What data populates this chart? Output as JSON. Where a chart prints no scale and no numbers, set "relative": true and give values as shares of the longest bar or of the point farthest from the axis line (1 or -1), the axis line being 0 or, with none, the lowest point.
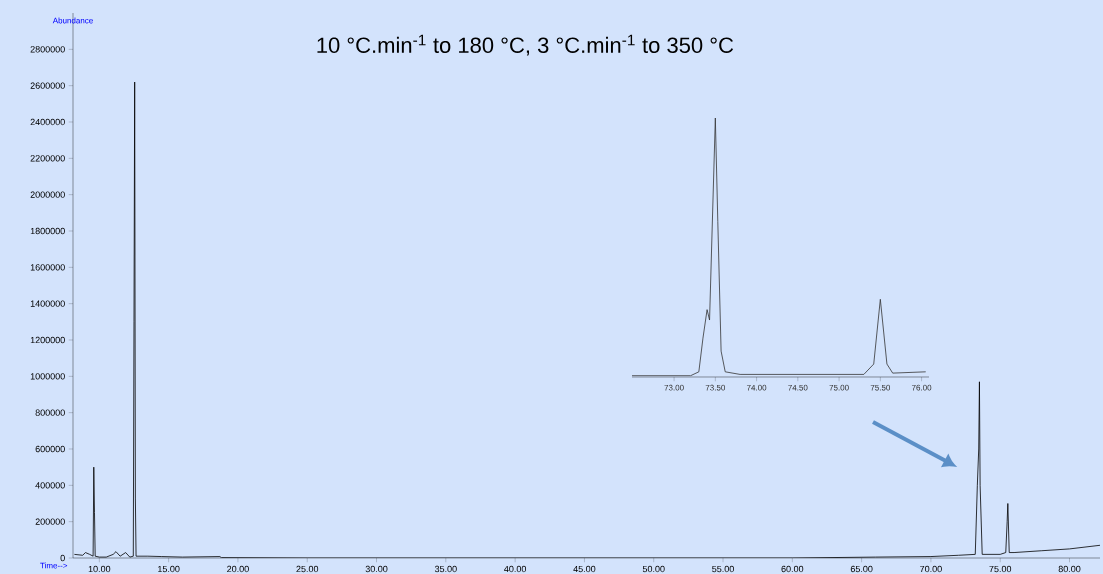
{
  "chart_data": [
    {
      "type": "line",
      "title": "10 °C.min$^{-1}$ to 180 °C, 3 °C.min$^{-1}$ to 350 °C",
      "xlabel": "Time-->",
      "ylabel": "Abundance",
      "xlim": [
        8.1,
        82.2
      ],
      "ylim": [
        0,
        3000000
      ],
      "xticks": [
        {
          "value": 10,
          "label": "10.00"
        },
        {
          "value": 15,
          "label": "15.00"
        },
        {
          "value": 20,
          "label": "20.00"
        },
        {
          "value": 25,
          "label": "25.00"
        },
        {
          "value": 30,
          "label": "30.00"
        },
        {
          "value": 35,
          "label": "35.00"
        },
        {
          "value": 40,
          "label": "40.00"
        },
        {
          "value": 45,
          "label": "45.00"
        },
        {
          "value": 50,
          "label": "50.00"
        },
        {
          "value": 55,
          "label": "55.00"
        },
        {
          "value": 60,
          "label": "60.00"
        },
        {
          "value": 65,
          "label": "65.00"
        },
        {
          "value": 70,
          "label": "70.00"
        },
        {
          "value": 75,
          "label": "75.00"
        },
        {
          "value": 80,
          "label": "80.00"
        }
      ],
      "yticks": [
        0,
        200000,
        400000,
        600000,
        800000,
        1000000,
        1200000,
        1400000,
        1600000,
        1800000,
        2000000,
        2200000,
        2400000,
        2600000,
        2800000
      ],
      "series": [
        {
          "color": "#000000",
          "x": [
            8.2,
            8.8,
            9.0,
            9.3,
            9.55,
            9.6,
            9.65,
            9.7,
            10.0,
            10.5,
            11.0,
            11.2,
            11.5,
            11.9,
            12.2,
            12.45,
            12.5,
            12.55,
            12.6,
            12.65,
            13.5,
            14.5,
            16.0,
            18.7,
            18.8,
            25.0,
            40.0,
            60.0,
            66.0,
            70.0,
            72.0,
            73.2,
            73.35,
            73.45,
            73.5,
            73.55,
            73.7,
            75.0,
            75.4,
            75.5,
            75.55,
            75.65,
            76.0,
            78.0,
            80.0,
            82.2
          ],
          "values": [
            20000,
            15000,
            30000,
            20000,
            10000,
            500000,
            250000,
            10000,
            5000,
            5000,
            20000,
            35000,
            10000,
            30000,
            5000,
            10000,
            1300000,
            2620000,
            330000,
            10000,
            10000,
            8000,
            5000,
            8000,
            2000,
            0,
            0,
            0,
            5000,
            8000,
            15000,
            20000,
            400000,
            600000,
            970000,
            400000,
            20000,
            20000,
            30000,
            200000,
            300000,
            30000,
            30000,
            40000,
            50000,
            70000
          ]
        }
      ]
    },
    {
      "type": "line",
      "relative": true,
      "xlim": [
        72.49,
        76.09
      ],
      "xticks": [
        {
          "value": 73,
          "label": "73.00"
        },
        {
          "value": 73.5,
          "label": "73.50"
        },
        {
          "value": 74,
          "label": "74.00"
        },
        {
          "value": 74.5,
          "label": "74.50"
        },
        {
          "value": 75,
          "label": "75.00"
        },
        {
          "value": 75.5,
          "label": "75.50"
        },
        {
          "value": 76,
          "label": "76.00"
        }
      ],
      "series": [
        {
          "color": "#333333",
          "x": [
            72.49,
            73.2,
            73.3,
            73.35,
            73.4,
            73.43,
            73.5,
            73.53,
            73.57,
            73.62,
            73.8,
            75.3,
            75.42,
            75.5,
            75.58,
            75.65,
            76.05
          ],
          "values": [
            0.005,
            0.005,
            0.02,
            0.15,
            0.26,
            0.22,
            1,
            0.6,
            0.1,
            0.02,
            0.01,
            0.01,
            0.05,
            0.3,
            0.05,
            0.015,
            0.02
          ]
        }
      ]
    }
  ]
}
